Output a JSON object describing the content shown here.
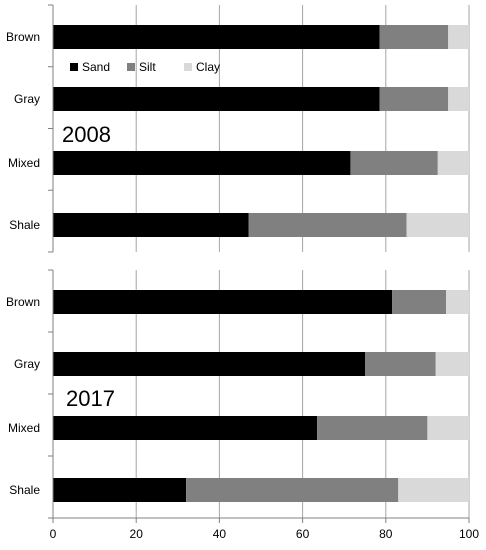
{
  "chart_data": {
    "type": "bar",
    "orientation": "horizontal",
    "stacked": true,
    "xlim": [
      0,
      100
    ],
    "xticks": [
      "0",
      "20",
      "40",
      "60",
      "80",
      "100"
    ],
    "grid": true,
    "legend": {
      "placement": "top-left",
      "entries": [
        {
          "name": "Sand",
          "color": "#000000"
        },
        {
          "name": "Silt",
          "color": "#808080"
        },
        {
          "name": "Clay",
          "color": "#d9d9d9"
        }
      ]
    },
    "panels": [
      {
        "label": "2008",
        "categories": [
          "Brown",
          "Gray",
          "Mixed",
          "Shale"
        ],
        "series": [
          {
            "name": "Sand",
            "values": [
              78.5,
              78.5,
              71.5,
              47
            ]
          },
          {
            "name": "Silt",
            "values": [
              16.5,
              16.5,
              21,
              38
            ]
          },
          {
            "name": "Clay",
            "values": [
              5,
              5,
              7.5,
              15
            ]
          }
        ]
      },
      {
        "label": "2017",
        "categories": [
          "Brown",
          "Gray",
          "Mixed",
          "Shale"
        ],
        "series": [
          {
            "name": "Sand",
            "values": [
              81.5,
              75,
              63.5,
              32
            ]
          },
          {
            "name": "Silt",
            "values": [
              13,
              17,
              26.5,
              51
            ]
          },
          {
            "name": "Clay",
            "values": [
              5.5,
              8,
              10,
              17
            ]
          }
        ]
      }
    ]
  }
}
